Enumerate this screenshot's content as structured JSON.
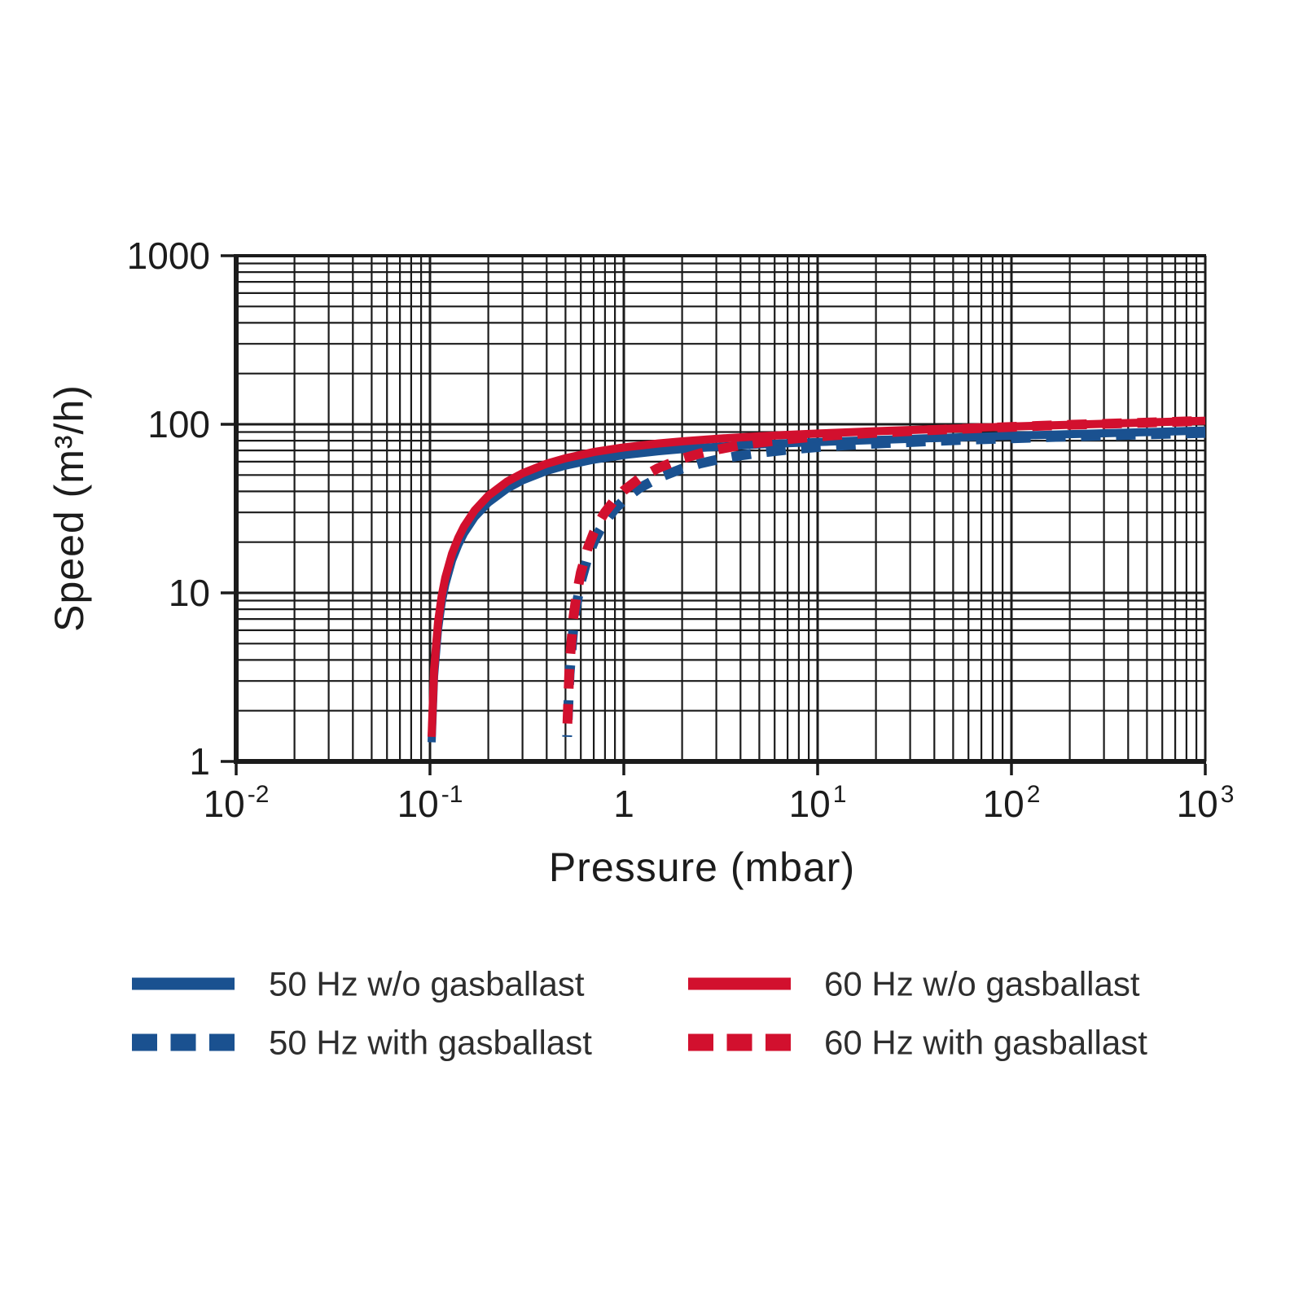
{
  "chart_data": {
    "type": "line",
    "title": "",
    "xlabel": "Pressure (mbar)",
    "ylabel": "Speed (m³/h)",
    "x_scale": "log",
    "y_scale": "log",
    "xlim": [
      0.01,
      1000
    ],
    "ylim": [
      1,
      1000
    ],
    "grid": "full log grid, major and minor lines, dark",
    "legend_position": "below-chart, two columns",
    "colors": {
      "blue_50hz": "#1a5190",
      "red_60hz": "#d2102e",
      "grid": "#1b1b1b",
      "text": "#1c1c1c"
    },
    "x_ticks": {
      "values": [
        0.01,
        0.1,
        1,
        10,
        100,
        1000
      ]
    },
    "y_ticks": {
      "values": [
        1,
        10,
        100,
        1000
      ],
      "labels": [
        "1",
        "10",
        "100",
        "1000"
      ]
    },
    "series": [
      {
        "name": "50 Hz w/o gasballast",
        "color": "#1a5190",
        "style": "solid",
        "points": [
          [
            0.102,
            1.3
          ],
          [
            0.105,
            3.2
          ],
          [
            0.11,
            6.1
          ],
          [
            0.115,
            8.8
          ],
          [
            0.12,
            11.2
          ],
          [
            0.13,
            15.6
          ],
          [
            0.14,
            19.3
          ],
          [
            0.15,
            22.6
          ],
          [
            0.17,
            28.1
          ],
          [
            0.2,
            34.3
          ],
          [
            0.25,
            41.5
          ],
          [
            0.3,
            46.5
          ],
          [
            0.4,
            52.9
          ],
          [
            0.5,
            56.9
          ],
          [
            0.7,
            61.7
          ],
          [
            1,
            65.7
          ],
          [
            1.5,
            69.2
          ],
          [
            2,
            71.2
          ],
          [
            3,
            73.5
          ],
          [
            5,
            75.9
          ],
          [
            7,
            77.2
          ],
          [
            10,
            78.5
          ],
          [
            20,
            80.8
          ],
          [
            50,
            83.5
          ],
          [
            100,
            85.5
          ],
          [
            200,
            87.4
          ],
          [
            500,
            89.9
          ],
          [
            1000,
            91.9
          ]
        ]
      },
      {
        "name": "60 Hz w/o gasballast",
        "color": "#d2102e",
        "style": "solid",
        "points": [
          [
            0.102,
            1.4
          ],
          [
            0.105,
            3.5
          ],
          [
            0.11,
            6.7
          ],
          [
            0.115,
            9.6
          ],
          [
            0.12,
            12.3
          ],
          [
            0.13,
            17.1
          ],
          [
            0.14,
            21.2
          ],
          [
            0.15,
            24.8
          ],
          [
            0.17,
            30.8
          ],
          [
            0.2,
            37.7
          ],
          [
            0.25,
            45.7
          ],
          [
            0.3,
            51.2
          ],
          [
            0.4,
            58.4
          ],
          [
            0.5,
            62.9
          ],
          [
            0.7,
            68.4
          ],
          [
            1,
            72.9
          ],
          [
            1.5,
            76.9
          ],
          [
            2,
            79.2
          ],
          [
            3,
            82.0
          ],
          [
            5,
            84.9
          ],
          [
            7,
            86.5
          ],
          [
            10,
            88.1
          ],
          [
            20,
            91.0
          ],
          [
            50,
            94.4
          ],
          [
            100,
            96.9
          ],
          [
            200,
            99.3
          ],
          [
            500,
            102.5
          ],
          [
            1000,
            105.0
          ]
        ]
      },
      {
        "name": "50 Hz with gasballast",
        "color": "#1a5190",
        "style": "dashed",
        "points": [
          [
            0.51,
            1.4
          ],
          [
            0.525,
            3.3
          ],
          [
            0.55,
            6.3
          ],
          [
            0.57,
            8.5
          ],
          [
            0.6,
            11.6
          ],
          [
            0.65,
            16.1
          ],
          [
            0.7,
            20.0
          ],
          [
            0.75,
            23.4
          ],
          [
            0.8,
            26.4
          ],
          [
            0.9,
            31.4
          ],
          [
            1,
            35.5
          ],
          [
            1.2,
            41.7
          ],
          [
            1.5,
            48.0
          ],
          [
            2,
            54.6
          ],
          [
            2.5,
            58.7
          ],
          [
            3,
            61.6
          ],
          [
            4,
            65.3
          ],
          [
            5,
            67.7
          ],
          [
            7,
            70.6
          ],
          [
            10,
            73.2
          ],
          [
            15,
            75.5
          ],
          [
            20,
            76.8
          ],
          [
            50,
            80.4
          ],
          [
            100,
            82.6
          ],
          [
            200,
            84.6
          ],
          [
            500,
            87.1
          ],
          [
            1000,
            88.9
          ]
        ]
      },
      {
        "name": "60 Hz with gasballast",
        "color": "#d2102e",
        "style": "dashed",
        "points": [
          [
            0.51,
            1.5
          ],
          [
            0.525,
            3.8
          ],
          [
            0.55,
            7.2
          ],
          [
            0.57,
            9.7
          ],
          [
            0.6,
            13.2
          ],
          [
            0.65,
            18.3
          ],
          [
            0.7,
            22.8
          ],
          [
            0.75,
            26.7
          ],
          [
            0.8,
            30.1
          ],
          [
            0.9,
            35.8
          ],
          [
            1,
            40.5
          ],
          [
            1.2,
            47.6
          ],
          [
            1.5,
            54.9
          ],
          [
            2,
            62.6
          ],
          [
            2.5,
            67.3
          ],
          [
            3,
            70.7
          ],
          [
            4,
            75.1
          ],
          [
            5,
            77.9
          ],
          [
            7,
            81.5
          ],
          [
            10,
            84.6
          ],
          [
            15,
            87.4
          ],
          [
            20,
            89.1
          ],
          [
            50,
            93.6
          ],
          [
            100,
            96.5
          ],
          [
            200,
            99.3
          ],
          [
            500,
            102.4
          ],
          [
            1000,
            104.9
          ]
        ]
      }
    ],
    "legend_items": [
      {
        "label": "50 Hz w/o gasballast",
        "color": "#1a5190",
        "style": "solid"
      },
      {
        "label": "50 Hz with gasballast",
        "color": "#1a5190",
        "style": "dashed"
      },
      {
        "label": "60 Hz w/o gasballast",
        "color": "#d2102e",
        "style": "solid"
      },
      {
        "label": "60 Hz with gasballast",
        "color": "#d2102e",
        "style": "dashed"
      }
    ]
  },
  "axes": {
    "x_tick_labels": [
      {
        "base": "10",
        "exp": "-2"
      },
      {
        "base": "10",
        "exp": "-1"
      },
      {
        "base": "1",
        "exp": ""
      },
      {
        "base": "10",
        "exp": "1"
      },
      {
        "base": "10",
        "exp": "2"
      },
      {
        "base": "10",
        "exp": "3"
      }
    ],
    "y_tick_labels": [
      "1",
      "10",
      "100",
      "1000"
    ]
  }
}
